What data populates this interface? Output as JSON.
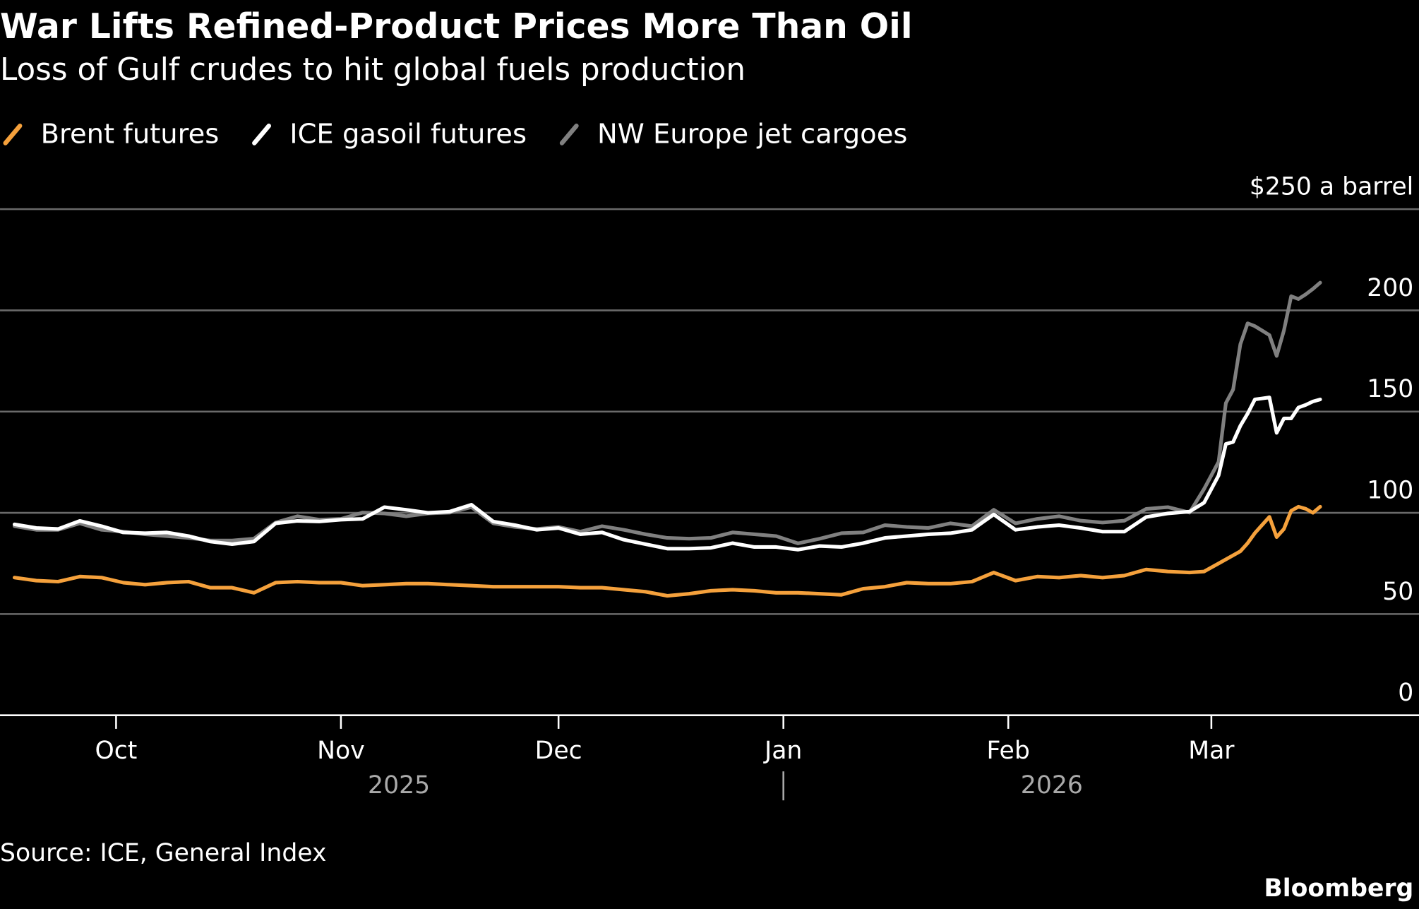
{
  "chart_data": {
    "type": "line",
    "title": "War Lifts Refined-Product Prices More Than Oil",
    "subtitle": "Loss of Gulf crudes to hit global fuels production",
    "source": "Source: ICE, General Index",
    "brand": "Bloomberg",
    "x": [
      0,
      3,
      6,
      9,
      12,
      15,
      18,
      21,
      24,
      27,
      30,
      33,
      36,
      39,
      42,
      45,
      48,
      51,
      54,
      57,
      60,
      63,
      66,
      69,
      72,
      75,
      78,
      81,
      84,
      87,
      90,
      93,
      96,
      99,
      102,
      105,
      108,
      111,
      114,
      117,
      120,
      123,
      126,
      129,
      132,
      135,
      138,
      141,
      144,
      147,
      150,
      153,
      156,
      159,
      162,
      164,
      166,
      167,
      168,
      169,
      170,
      171,
      172,
      173,
      174,
      175,
      176,
      177,
      178,
      179,
      180
    ],
    "xlim": [
      -2,
      193
    ],
    "xticks": [
      {
        "value": 14,
        "label": "Oct"
      },
      {
        "value": 45,
        "label": "Nov"
      },
      {
        "value": 75,
        "label": "Dec"
      },
      {
        "value": 106,
        "label": "Jan"
      },
      {
        "value": 137,
        "label": "Feb"
      },
      {
        "value": 165,
        "label": "Mar"
      }
    ],
    "years": [
      "2025",
      "2026"
    ],
    "ylim": [
      0,
      250
    ],
    "yticks": [
      0,
      50,
      100,
      150,
      200,
      {
        "value": 250,
        "label": "$250 a barrel"
      }
    ],
    "grid": true,
    "series": [
      {
        "name": "Brent futures",
        "color": "#f5a13c",
        "values": [
          68,
          66.5,
          66,
          68.5,
          68,
          65.5,
          64.5,
          65.5,
          66,
          63,
          63,
          60.5,
          65.5,
          66,
          65.5,
          65.5,
          64,
          64.5,
          65,
          65,
          64.5,
          64,
          63.5,
          63.5,
          63.5,
          63.5,
          63,
          63,
          62,
          61,
          59,
          60,
          61.5,
          62,
          61.5,
          60.5,
          60.5,
          60,
          59.5,
          62.5,
          63.5,
          65.5,
          65,
          65,
          66,
          70.5,
          66.5,
          68.5,
          68,
          69,
          68,
          69,
          72,
          71,
          70.5,
          71,
          75,
          77,
          79,
          81,
          85,
          90,
          94,
          98,
          88,
          92,
          101,
          103,
          102,
          100,
          103
        ]
      },
      {
        "name": "ICE gasoil futures",
        "color": "#ffffff",
        "values": [
          94.3,
          92.5,
          92,
          96,
          93.4,
          90.3,
          89.9,
          90.3,
          88.5,
          85.8,
          84.5,
          85.8,
          94.8,
          96,
          95.7,
          96.6,
          97,
          102.8,
          101.5,
          100,
          100.6,
          104,
          95.7,
          93.9,
          91.6,
          92.5,
          89.4,
          90.3,
          86.7,
          84.5,
          82.3,
          82.3,
          82.7,
          85,
          83.1,
          83.1,
          81.8,
          83.6,
          83.1,
          85,
          87.6,
          88.5,
          89.4,
          89.9,
          91.6,
          99.2,
          91.6,
          93,
          93.9,
          92.5,
          90.7,
          90.7,
          97.9,
          99.7,
          100.6,
          105,
          118.5,
          134,
          135,
          143,
          149,
          156,
          156.5,
          157,
          139.5,
          146.6,
          146.6,
          152,
          153.3,
          155,
          156
        ]
      },
      {
        "name": "NW Europe jet cargoes",
        "color": "#808080",
        "values": [
          93.4,
          91.6,
          91.6,
          94.8,
          91.6,
          90.7,
          89.4,
          88.5,
          87.6,
          86.3,
          86.3,
          87.2,
          95.2,
          98.3,
          96.6,
          97,
          100.1,
          99.7,
          98.3,
          99.7,
          100.1,
          102.8,
          94.8,
          93,
          92,
          93,
          90.7,
          93.4,
          91.6,
          89.4,
          87.6,
          87.2,
          87.6,
          90.3,
          89.4,
          88.5,
          84.9,
          87.2,
          89.9,
          90.3,
          93.9,
          93,
          92.5,
          94.8,
          93.4,
          101.5,
          94.8,
          97,
          98.3,
          96.1,
          95.2,
          96.1,
          101.9,
          102.8,
          100.1,
          111.8,
          125.2,
          154.2,
          160.9,
          183.3,
          193.6,
          192.2,
          190,
          187.8,
          177.5,
          190,
          207,
          205.6,
          207.9,
          210.6,
          213.7
        ]
      }
    ]
  }
}
